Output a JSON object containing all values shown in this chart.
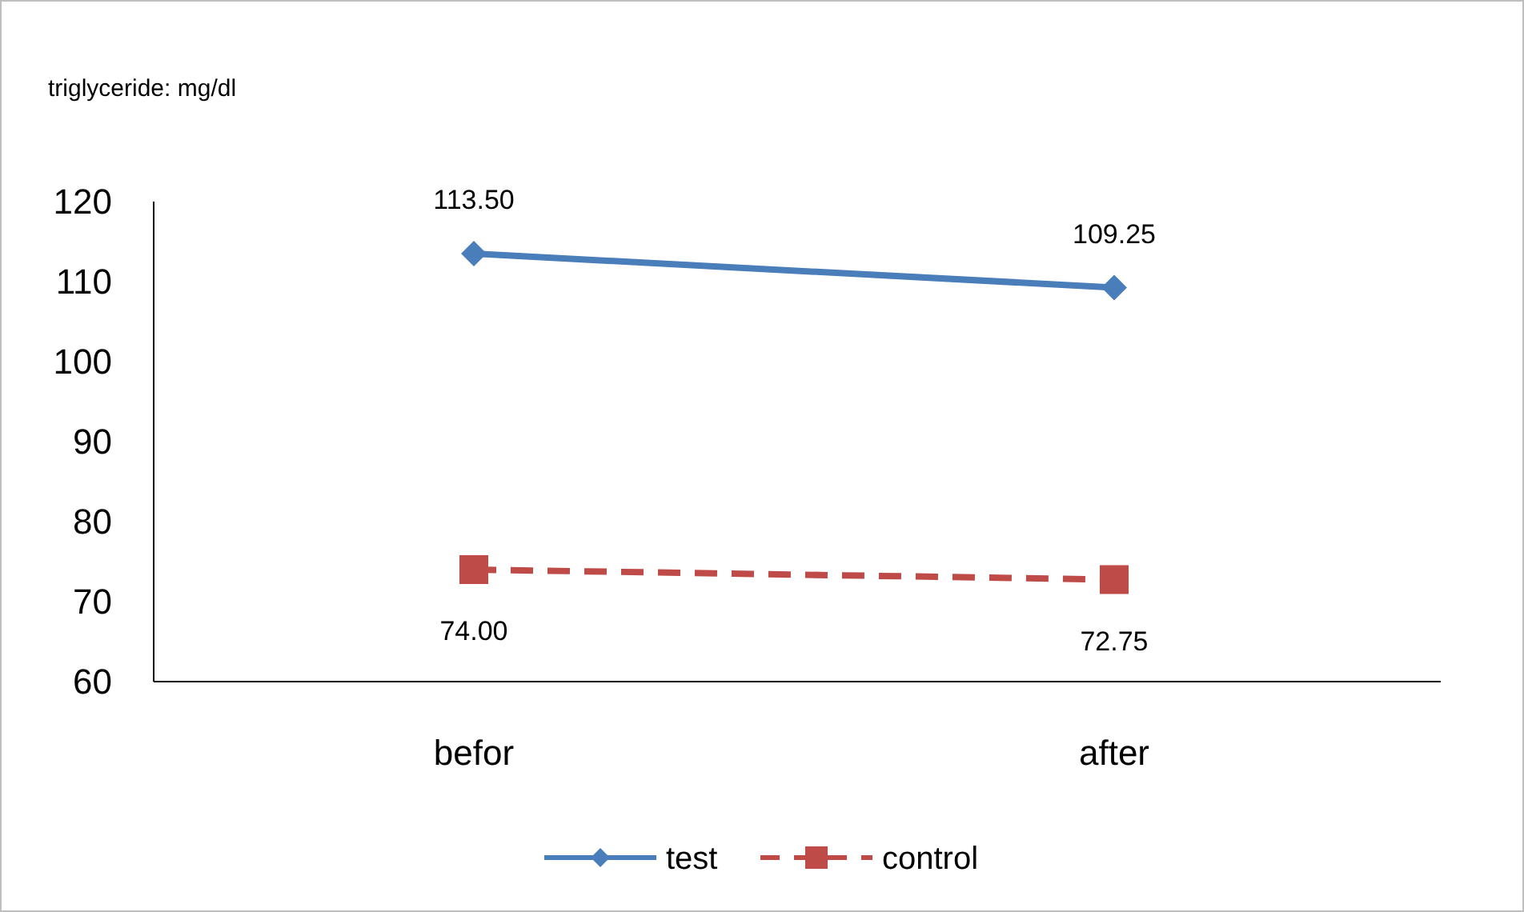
{
  "chart_data": {
    "type": "line",
    "title": "triglyceride: mg/dl",
    "categories": [
      "befor",
      "after"
    ],
    "series": [
      {
        "name": "test",
        "color": "#4a7ebb",
        "values": [
          113.5,
          109.25
        ],
        "value_labels": [
          "113.50",
          "109.25"
        ],
        "marker": "diamond",
        "line_style": "solid"
      },
      {
        "name": "control",
        "color": "#be4b48",
        "values": [
          74.0,
          72.75
        ],
        "value_labels": [
          "74.00",
          "72.75"
        ],
        "marker": "square",
        "line_style": "dashed"
      }
    ],
    "ylim": [
      60,
      120
    ],
    "yticks": [
      60,
      70,
      80,
      90,
      100,
      110,
      120
    ],
    "legend": "bottom",
    "grid": false
  }
}
